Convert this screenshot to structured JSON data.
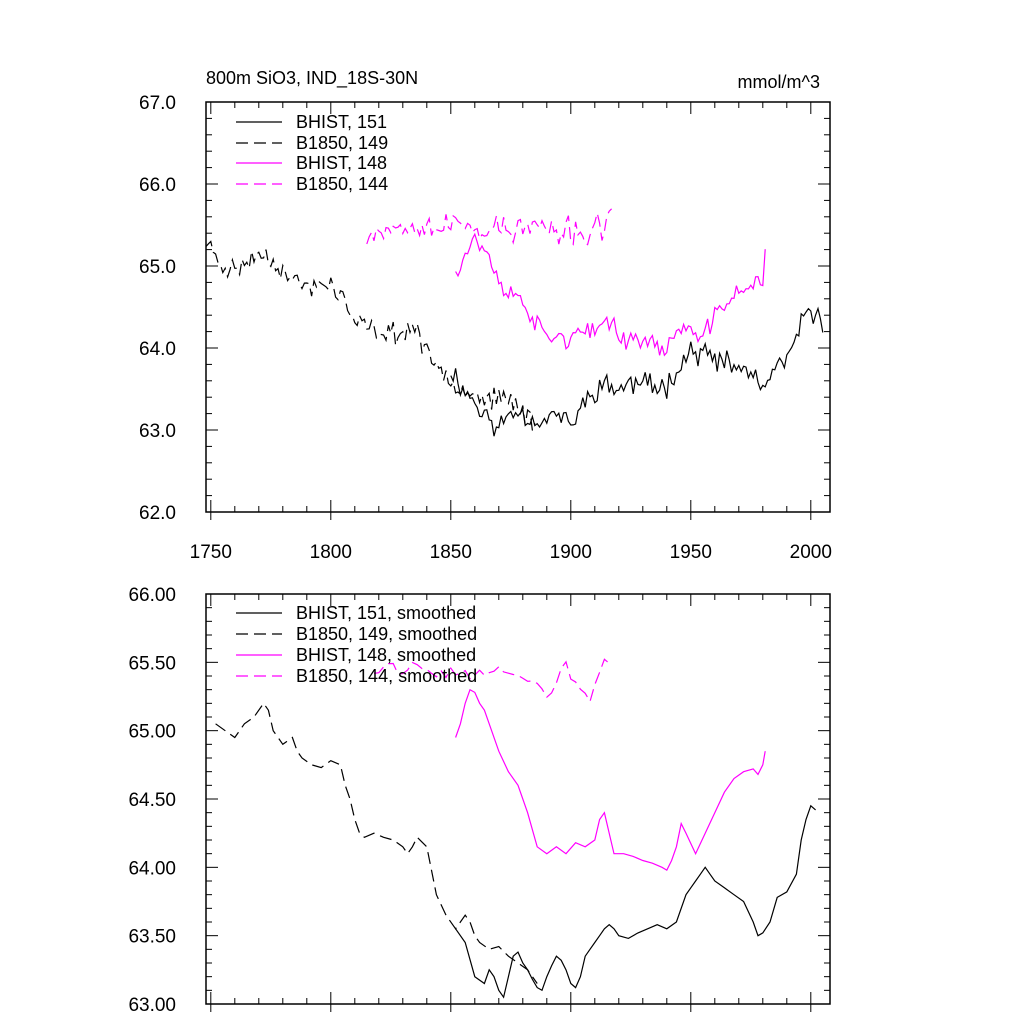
{
  "chart_data": [
    {
      "type": "line",
      "title": "800m SiO3, IND_18S-30N",
      "units": "mmol/m^3",
      "xlim": [
        1748,
        2008
      ],
      "ylim": [
        62.0,
        67.0
      ],
      "xticks": [
        1750,
        1800,
        1850,
        1900,
        1950,
        2000
      ],
      "xtick_labels": [
        "1750",
        "1800",
        "1850",
        "1900",
        "1950",
        "2000"
      ],
      "yticks": [
        62.0,
        63.0,
        64.0,
        65.0,
        66.0,
        67.0
      ],
      "ytick_labels": [
        "62.0",
        "63.0",
        "64.0",
        "65.0",
        "66.0",
        "67.0"
      ],
      "legend": [
        "BHIST, 151",
        "B1850, 149",
        "BHIST, 148",
        "B1850, 144"
      ],
      "series": [
        {
          "name": "BHIST, 151",
          "color": "#000000",
          "dash": "solid",
          "seed": 11,
          "noise": 0.18,
          "x": [
            1850,
            1855,
            1860,
            1865,
            1870,
            1875,
            1880,
            1885,
            1890,
            1895,
            1900,
            1905,
            1910,
            1915,
            1920,
            1925,
            1930,
            1935,
            1940,
            1945,
            1950,
            1955,
            1960,
            1965,
            1970,
            1975,
            1980,
            1985,
            1990,
            1995,
            2000,
            2005
          ],
          "y": [
            63.75,
            63.5,
            63.35,
            63.15,
            63.0,
            63.25,
            63.2,
            63.1,
            63.15,
            63.2,
            63.05,
            63.3,
            63.5,
            63.55,
            63.5,
            63.55,
            63.6,
            63.5,
            63.55,
            63.8,
            63.95,
            63.95,
            63.85,
            63.8,
            63.75,
            63.7,
            63.5,
            63.7,
            63.85,
            64.2,
            64.5,
            64.25
          ]
        },
        {
          "name": "B1850, 149",
          "color": "#000000",
          "dash": "dashed",
          "seed": 23,
          "noise": 0.16,
          "x": [
            1748,
            1755,
            1760,
            1765,
            1770,
            1775,
            1780,
            1785,
            1790,
            1795,
            1800,
            1805,
            1810,
            1815,
            1820,
            1825,
            1830,
            1835,
            1840,
            1845,
            1850,
            1855,
            1860,
            1865,
            1870,
            1875,
            1880,
            1885
          ],
          "y": [
            65.3,
            65.0,
            64.95,
            65.05,
            65.15,
            65.1,
            64.95,
            64.8,
            64.75,
            64.75,
            64.8,
            64.6,
            64.3,
            64.25,
            64.2,
            64.2,
            64.15,
            64.3,
            63.9,
            63.75,
            63.65,
            63.5,
            63.45,
            63.4,
            63.35,
            63.4,
            63.2,
            63.1
          ]
        },
        {
          "name": "BHIST, 148",
          "color": "#ff00ff",
          "dash": "solid",
          "seed": 37,
          "noise": 0.15,
          "x": [
            1852,
            1855,
            1860,
            1865,
            1870,
            1875,
            1880,
            1885,
            1890,
            1895,
            1900,
            1905,
            1910,
            1915,
            1920,
            1925,
            1930,
            1935,
            1940,
            1945,
            1950,
            1955,
            1960,
            1965,
            1970,
            1975,
            1980,
            1981
          ],
          "y": [
            64.95,
            65.1,
            65.35,
            65.15,
            64.8,
            64.65,
            64.6,
            64.3,
            64.15,
            64.15,
            64.1,
            64.2,
            64.15,
            64.4,
            64.15,
            64.1,
            64.1,
            64.05,
            63.95,
            64.3,
            64.2,
            64.1,
            64.4,
            64.55,
            64.7,
            64.75,
            64.85,
            65.2
          ]
        },
        {
          "name": "B1850, 144",
          "color": "#ff00ff",
          "dash": "dashed",
          "seed": 53,
          "noise": 0.2,
          "x": [
            1815,
            1820,
            1825,
            1830,
            1835,
            1840,
            1845,
            1850,
            1855,
            1860,
            1865,
            1870,
            1875,
            1880,
            1885,
            1890,
            1895,
            1900,
            1905,
            1910,
            1915,
            1917
          ],
          "y": [
            65.4,
            65.45,
            65.5,
            65.45,
            65.55,
            65.5,
            65.45,
            65.5,
            65.5,
            65.45,
            65.45,
            65.5,
            65.4,
            65.45,
            65.5,
            65.45,
            65.35,
            65.45,
            65.35,
            65.45,
            65.5,
            65.6
          ]
        }
      ]
    },
    {
      "type": "line",
      "xlim": [
        1748,
        2008
      ],
      "ylim": [
        63.0,
        66.0
      ],
      "xticks": [
        1750,
        1800,
        1850,
        1900,
        1950,
        2000
      ],
      "yticks": [
        63.0,
        63.5,
        64.0,
        64.5,
        65.0,
        65.5,
        66.0
      ],
      "ytick_labels": [
        "63.00",
        "63.50",
        "64.00",
        "64.50",
        "65.00",
        "65.50",
        "66.00"
      ],
      "legend": [
        "BHIST, 151, smoothed",
        "B1850, 149, smoothed",
        "BHIST, 148, smoothed",
        "B1850, 144, smoothed"
      ],
      "series": [
        {
          "name": "BHIST, 151, smoothed",
          "color": "#000000",
          "dash": "solid",
          "x": [
            1852,
            1856,
            1860,
            1864,
            1866,
            1868,
            1870,
            1872,
            1874,
            1876,
            1878,
            1880,
            1882,
            1884,
            1886,
            1888,
            1890,
            1892,
            1894,
            1896,
            1898,
            1900,
            1902,
            1904,
            1906,
            1908,
            1910,
            1912,
            1914,
            1916,
            1918,
            1920,
            1924,
            1928,
            1932,
            1936,
            1940,
            1944,
            1948,
            1950,
            1952,
            1954,
            1956,
            1958,
            1960,
            1964,
            1968,
            1972,
            1976,
            1978,
            1980,
            1983,
            1986,
            1990,
            1994,
            1996,
            1998,
            2000,
            2002
          ],
          "y": [
            63.55,
            63.45,
            63.2,
            63.15,
            63.25,
            63.2,
            63.1,
            63.05,
            63.2,
            63.35,
            63.38,
            63.3,
            63.25,
            63.18,
            63.12,
            63.1,
            63.2,
            63.28,
            63.35,
            63.32,
            63.25,
            63.15,
            63.12,
            63.2,
            63.35,
            63.4,
            63.45,
            63.5,
            63.55,
            63.58,
            63.55,
            63.5,
            63.48,
            63.52,
            63.55,
            63.58,
            63.55,
            63.6,
            63.8,
            63.85,
            63.9,
            63.95,
            64.0,
            63.95,
            63.9,
            63.85,
            63.8,
            63.75,
            63.6,
            63.5,
            63.52,
            63.6,
            63.78,
            63.82,
            63.95,
            64.2,
            64.35,
            64.45,
            64.42
          ]
        },
        {
          "name": "B1850, 149, smoothed",
          "color": "#000000",
          "dash": "dashed",
          "x": [
            1752,
            1756,
            1760,
            1764,
            1768,
            1772,
            1774,
            1776,
            1778,
            1780,
            1784,
            1786,
            1788,
            1792,
            1796,
            1800,
            1804,
            1806,
            1808,
            1810,
            1812,
            1814,
            1818,
            1822,
            1826,
            1830,
            1832,
            1834,
            1836,
            1840,
            1844,
            1848,
            1852,
            1854,
            1856,
            1858,
            1860,
            1862,
            1866,
            1870,
            1874,
            1878,
            1882,
            1886
          ],
          "y": [
            65.05,
            65.0,
            64.95,
            65.05,
            65.1,
            65.2,
            65.15,
            65.0,
            64.95,
            64.9,
            64.95,
            64.85,
            64.8,
            64.75,
            64.73,
            64.78,
            64.75,
            64.6,
            64.5,
            64.35,
            64.25,
            64.22,
            64.25,
            64.22,
            64.2,
            64.15,
            64.1,
            64.15,
            64.22,
            64.15,
            63.8,
            63.65,
            63.55,
            63.6,
            63.65,
            63.6,
            63.5,
            63.45,
            63.4,
            63.42,
            63.35,
            63.3,
            63.25,
            63.15
          ]
        },
        {
          "name": "BHIST, 148, smoothed",
          "color": "#ff00ff",
          "dash": "solid",
          "x": [
            1852,
            1854,
            1856,
            1858,
            1860,
            1862,
            1864,
            1866,
            1870,
            1874,
            1878,
            1882,
            1886,
            1890,
            1894,
            1898,
            1902,
            1906,
            1910,
            1912,
            1914,
            1916,
            1918,
            1922,
            1926,
            1930,
            1934,
            1938,
            1940,
            1942,
            1944,
            1946,
            1948,
            1952,
            1956,
            1960,
            1964,
            1968,
            1972,
            1976,
            1978,
            1980,
            1981
          ],
          "y": [
            64.95,
            65.05,
            65.2,
            65.3,
            65.28,
            65.2,
            65.15,
            65.05,
            64.85,
            64.7,
            64.6,
            64.4,
            64.15,
            64.1,
            64.15,
            64.1,
            64.18,
            64.15,
            64.2,
            64.35,
            64.4,
            64.25,
            64.1,
            64.1,
            64.08,
            64.05,
            64.03,
            64.0,
            63.98,
            64.05,
            64.15,
            64.32,
            64.25,
            64.1,
            64.25,
            64.4,
            64.55,
            64.65,
            64.7,
            64.72,
            64.68,
            64.75,
            64.85
          ]
        },
        {
          "name": "B1850, 144, smoothed",
          "color": "#ff00ff",
          "dash": "dashed",
          "seed": 71,
          "noise": 0.04,
          "x": [
            1818,
            1822,
            1826,
            1830,
            1834,
            1838,
            1842,
            1846,
            1850,
            1854,
            1858,
            1862,
            1866,
            1870,
            1874,
            1878,
            1882,
            1886,
            1888,
            1890,
            1892,
            1894,
            1896,
            1898,
            1900,
            1902,
            1904,
            1906,
            1908,
            1910,
            1912,
            1914,
            1916
          ],
          "y": [
            65.42,
            65.45,
            65.48,
            65.4,
            65.5,
            65.45,
            65.42,
            65.4,
            65.45,
            65.42,
            65.4,
            65.44,
            65.42,
            65.45,
            65.4,
            65.42,
            65.38,
            65.35,
            65.3,
            65.25,
            65.3,
            65.35,
            65.45,
            65.5,
            65.4,
            65.35,
            65.3,
            65.28,
            65.25,
            65.35,
            65.45,
            65.5,
            65.48
          ]
        }
      ]
    }
  ]
}
